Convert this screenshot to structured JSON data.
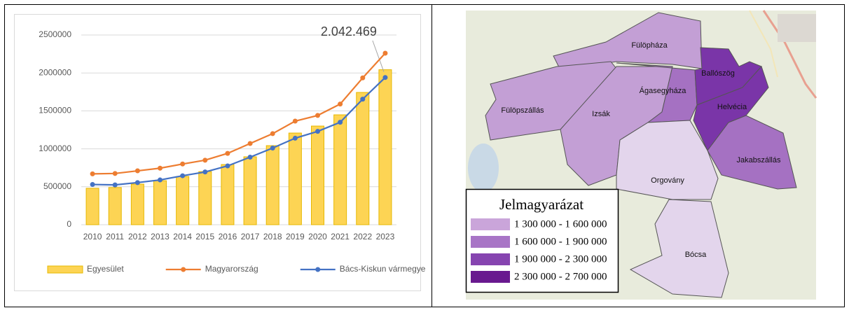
{
  "chart_data": {
    "type": "bar-line",
    "categories": [
      "2010",
      "2011",
      "2012",
      "2013",
      "2014",
      "2015",
      "2016",
      "2017",
      "2018",
      "2019",
      "2020",
      "2021",
      "2022",
      "2023"
    ],
    "series": [
      {
        "name": "Egyesület",
        "type": "bar",
        "color": "#fdd454",
        "edge": "#e6b800",
        "values": [
          480000,
          490000,
          535000,
          580000,
          636000,
          700000,
          793000,
          895000,
          1042000,
          1208000,
          1300000,
          1448000,
          1743000,
          2042469
        ],
        "value_labels": [
          null,
          null,
          null,
          null,
          null,
          null,
          null,
          null,
          null,
          null,
          null,
          null,
          null,
          "2.042.469"
        ]
      },
      {
        "name": "Magyarország",
        "type": "line",
        "color": "#ed7d31",
        "values": [
          670000,
          675000,
          710000,
          745000,
          800000,
          850000,
          940000,
          1070000,
          1200000,
          1365000,
          1440000,
          1590000,
          1935000,
          2260000
        ]
      },
      {
        "name": "Bács-Kiskun vármegye",
        "type": "line",
        "color": "#4472c4",
        "values": [
          530000,
          525000,
          555000,
          590000,
          645000,
          695000,
          775000,
          890000,
          1010000,
          1140000,
          1230000,
          1350000,
          1655000,
          1940000
        ]
      }
    ],
    "ylim": [
      0,
      2500000
    ],
    "yticks": [
      0,
      500000,
      1000000,
      1500000,
      2000000,
      2500000
    ],
    "grid": true
  },
  "map": {
    "regions": [
      {
        "name": "Fülöpháza",
        "color": "#c39fd5"
      },
      {
        "name": "Fülöpszállás",
        "color": "#c39fd5"
      },
      {
        "name": "Izsák",
        "color": "#c39fd5"
      },
      {
        "name": "Ágasegyháza",
        "color": "#a571c2"
      },
      {
        "name": "Ballószög",
        "color": "#7a35a8"
      },
      {
        "name": "Helvécia",
        "color": "#7a35a8"
      },
      {
        "name": "Orgovány",
        "color": "#e3d5ec"
      },
      {
        "name": "Jakabszállás",
        "color": "#a571c2"
      },
      {
        "name": "Bócsa",
        "color": "#e3d5ec"
      }
    ],
    "legend": {
      "title": "Jelmagyarázat",
      "items": [
        {
          "label": "1 300 000 - 1 600 000",
          "color": "#caa5da"
        },
        {
          "label": "1 600 000 - 1 900 000",
          "color": "#a875c6"
        },
        {
          "label": "1 900 000 - 2 300 000",
          "color": "#8644b0"
        },
        {
          "label": "2 300 000 - 2 700 000",
          "color": "#69198f"
        }
      ]
    }
  }
}
